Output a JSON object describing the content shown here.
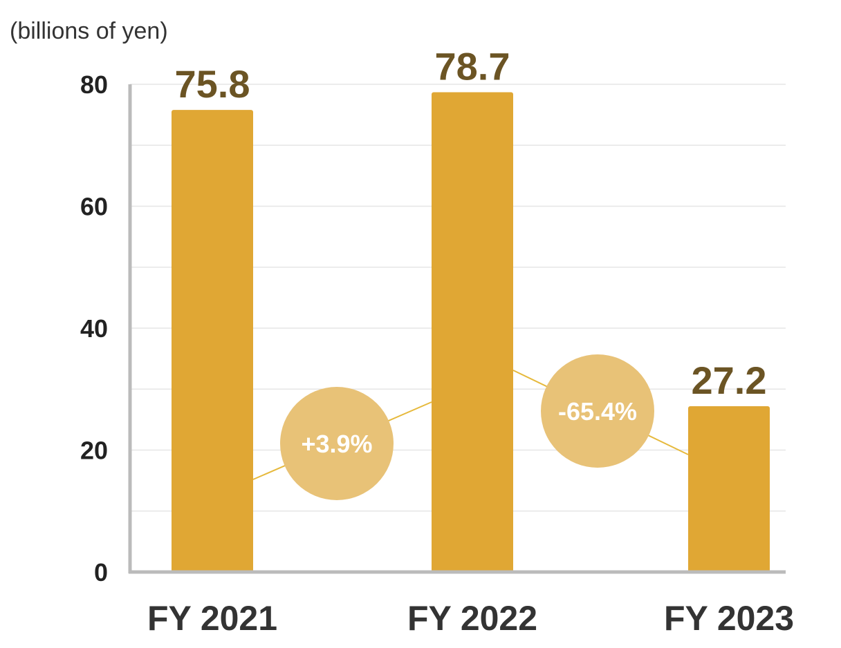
{
  "chart_data": {
    "type": "bar",
    "unit_label": "(billions of yen)",
    "categories": [
      "FY 2021",
      "FY 2022",
      "FY 2023"
    ],
    "values": [
      75.8,
      78.7,
      27.2
    ],
    "value_labels": [
      "75.8",
      "78.7",
      "27.2"
    ],
    "ylim": [
      0,
      80
    ],
    "yticks": [
      0,
      20,
      40,
      60,
      80
    ],
    "grid": true,
    "changes": [
      {
        "from": "FY 2021",
        "to": "FY 2022",
        "label": "+3.9%"
      },
      {
        "from": "FY 2022",
        "to": "FY 2023",
        "label": "-65.4%"
      }
    ],
    "colors": {
      "bar": "#E0A734",
      "value_text": "#6B5424",
      "bubble": "#E8C277",
      "trend_line": "#E6B93C",
      "axis": "#BBBBBB",
      "grid": "#E6E6E6"
    }
  }
}
